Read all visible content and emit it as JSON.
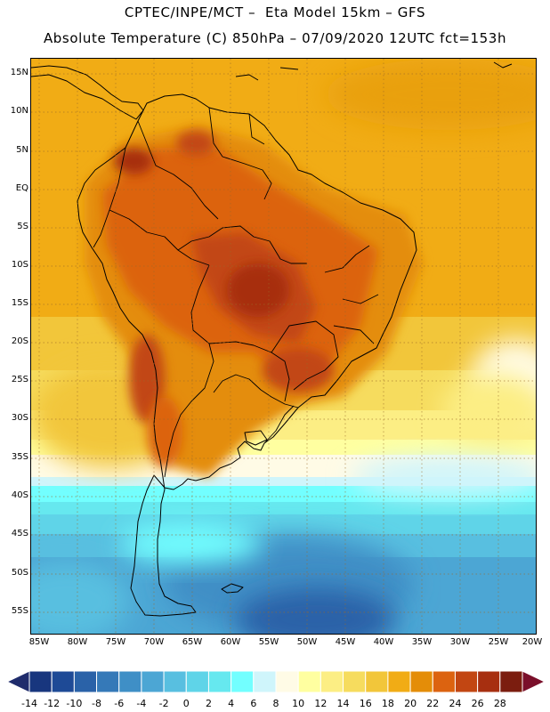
{
  "header": {
    "title_line1": "CPTEC/INPE/MCT –  Eta Model 15km – GFS",
    "title_line2": "Absolute Temperature (C) 850hPa – 07/09/2020 12UTC fct=153h"
  },
  "map": {
    "region": "South America",
    "field": "Absolute Temperature (C) 850hPa",
    "lat_labels": [
      "15N",
      "10N",
      "5N",
      "EQ",
      "5S",
      "10S",
      "15S",
      "20S",
      "25S",
      "30S",
      "35S",
      "40S",
      "45S",
      "50S",
      "55S"
    ],
    "lon_labels": [
      "85W",
      "80W",
      "75W",
      "70W",
      "65W",
      "60W",
      "55W",
      "50W",
      "45W",
      "40W",
      "35W",
      "30W",
      "25W",
      "20W"
    ]
  },
  "colorbar": {
    "labels": [
      "-14",
      "-12",
      "-10",
      "-8",
      "-6",
      "-4",
      "-2",
      "0",
      "2",
      "4",
      "6",
      "8",
      "10",
      "12",
      "14",
      "16",
      "18",
      "20",
      "22",
      "24",
      "26",
      "28"
    ],
    "colors": [
      "#18367e",
      "#1e4a96",
      "#2a62a8",
      "#3579b8",
      "#3f8fc6",
      "#4ca6d4",
      "#58bfe0",
      "#5fd4e8",
      "#66e8ef",
      "#72ffff",
      "#cff5fb",
      "#fffbe6",
      "#ffffa0",
      "#fcee84",
      "#f6dc5e",
      "#f2c63a",
      "#f1ac15",
      "#e48d08",
      "#dc6310",
      "#c24612",
      "#a72f10",
      "#7b1d0f"
    ],
    "under_color": "#1f2c6c",
    "over_color": "#7a0f2a"
  }
}
